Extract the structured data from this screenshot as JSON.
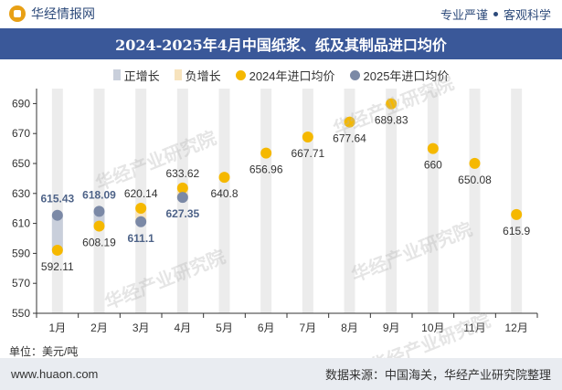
{
  "header": {
    "brand": "华经情报网",
    "tagline_left": "专业严谨",
    "tagline_right": "客观科学"
  },
  "watermark_text": "华经产业研究院",
  "footer": {
    "website": "www.huaon.com",
    "source": "数据来源：中国海关，华经产业研究院整理"
  },
  "colors": {
    "title_bg": "#3a5899",
    "positive_bar": "#c9cfdb",
    "negative_bar": "#f7e3bd",
    "series_2024": "#f5b800",
    "series_2025": "#7b89a6",
    "plot_band": "#ececec"
  },
  "chart_data": {
    "type": "scatter",
    "title": "2024-2025年4月中国纸浆、纸及其制品进口均价",
    "unit_label": "单位：美元/吨",
    "categories": [
      "1月",
      "2月",
      "3月",
      "4月",
      "5月",
      "6月",
      "7月",
      "8月",
      "9月",
      "10月",
      "11月",
      "12月"
    ],
    "ylim": [
      550,
      700
    ],
    "yticks": [
      550,
      570,
      590,
      610,
      630,
      650,
      670,
      690
    ],
    "legend": {
      "positive": "正增长",
      "negative": "负增长",
      "s2024": "2024年进口均价",
      "s2025": "2025年进口均价"
    },
    "series": [
      {
        "name": "2024年进口均价",
        "values": [
          592.11,
          608.19,
          620.14,
          633.62,
          640.8,
          656.96,
          667.71,
          677.64,
          689.83,
          660,
          650.08,
          615.9
        ],
        "labels": [
          "592.11",
          "608.19",
          "620.14",
          "633.62",
          "640.8",
          "656.96",
          "667.71",
          "677.64",
          "689.83",
          "660",
          "650.08",
          "615.9"
        ]
      },
      {
        "name": "2025年进口均价",
        "values": [
          615.43,
          618.09,
          611.1,
          627.35
        ],
        "labels": [
          "615.43",
          "618.09",
          "611.1",
          "627.35"
        ]
      }
    ],
    "change_bars": [
      {
        "month": "1月",
        "from": 592.11,
        "to": 615.43,
        "direction": "positive"
      },
      {
        "month": "2月",
        "from": 608.19,
        "to": 618.09,
        "direction": "positive"
      },
      {
        "month": "3月",
        "from": 620.14,
        "to": 611.1,
        "direction": "negative"
      },
      {
        "month": "4月",
        "from": 633.62,
        "to": 627.35,
        "direction": "negative"
      }
    ]
  }
}
